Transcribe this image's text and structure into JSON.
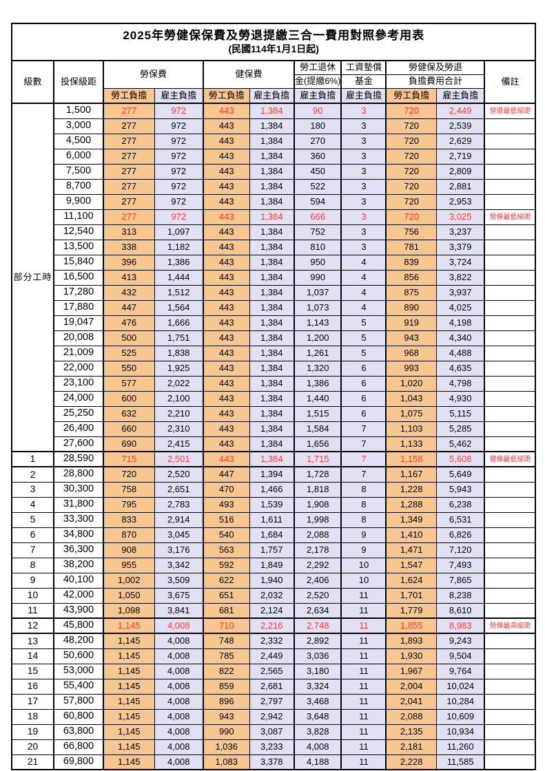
{
  "title": "2025年勞健保保費及勞退提繳三合一費用對照參考用表",
  "subtitle": "(民國114年1月1日起)",
  "header": {
    "level": "級數",
    "salary": "投保級距",
    "labor": "勞保費",
    "health": "健保費",
    "pension_line1": "勞工退休",
    "pension_line2": "金(提繳6%)",
    "wage_fund_line1": "工資墊償",
    "wage_fund_line2": "基金",
    "total_line1": "勞健保及勞退",
    "total_line2": "負擔費用合計",
    "employee": "勞工負擔",
    "employer": "雇主負擔",
    "remark": "備註"
  },
  "part_time_label": "部分工時",
  "colors": {
    "employee_bg": "#F8C68F",
    "employer_bg": "#E2E1F3",
    "highlight_text": "#FB4040"
  },
  "rows": [
    {
      "level": "",
      "salary": "1,500",
      "labor_emp": "277",
      "labor_er": "972",
      "health_emp": "443",
      "health_er": "1,384",
      "pension": "90",
      "fund": "3",
      "total_emp": "720",
      "total_er": "2,449",
      "note": "勞退最低級距",
      "red": true
    },
    {
      "level": "",
      "salary": "3,000",
      "labor_emp": "277",
      "labor_er": "972",
      "health_emp": "443",
      "health_er": "1,384",
      "pension": "180",
      "fund": "3",
      "total_emp": "720",
      "total_er": "2,539",
      "note": "",
      "red": false
    },
    {
      "level": "",
      "salary": "4,500",
      "labor_emp": "277",
      "labor_er": "972",
      "health_emp": "443",
      "health_er": "1,384",
      "pension": "270",
      "fund": "3",
      "total_emp": "720",
      "total_er": "2,629",
      "note": "",
      "red": false
    },
    {
      "level": "",
      "salary": "6,000",
      "labor_emp": "277",
      "labor_er": "972",
      "health_emp": "443",
      "health_er": "1,384",
      "pension": "360",
      "fund": "3",
      "total_emp": "720",
      "total_er": "2,719",
      "note": "",
      "red": false
    },
    {
      "level": "",
      "salary": "7,500",
      "labor_emp": "277",
      "labor_er": "972",
      "health_emp": "443",
      "health_er": "1,384",
      "pension": "450",
      "fund": "3",
      "total_emp": "720",
      "total_er": "2,809",
      "note": "",
      "red": false
    },
    {
      "level": "",
      "salary": "8,700",
      "labor_emp": "277",
      "labor_er": "972",
      "health_emp": "443",
      "health_er": "1,384",
      "pension": "522",
      "fund": "3",
      "total_emp": "720",
      "total_er": "2,881",
      "note": "",
      "red": false
    },
    {
      "level": "",
      "salary": "9,900",
      "labor_emp": "277",
      "labor_er": "972",
      "health_emp": "443",
      "health_er": "1,384",
      "pension": "594",
      "fund": "3",
      "total_emp": "720",
      "total_er": "2,953",
      "note": "",
      "red": false
    },
    {
      "level": "",
      "salary": "11,100",
      "labor_emp": "277",
      "labor_er": "972",
      "health_emp": "443",
      "health_er": "1,384",
      "pension": "666",
      "fund": "3",
      "total_emp": "720",
      "total_er": "3,025",
      "note": "勞保最低級距",
      "red": true
    },
    {
      "level": "",
      "salary": "12,540",
      "labor_emp": "313",
      "labor_er": "1,097",
      "health_emp": "443",
      "health_er": "1,384",
      "pension": "752",
      "fund": "3",
      "total_emp": "756",
      "total_er": "3,237",
      "note": "",
      "red": false
    },
    {
      "level": "",
      "salary": "13,500",
      "labor_emp": "338",
      "labor_er": "1,182",
      "health_emp": "443",
      "health_er": "1,384",
      "pension": "810",
      "fund": "3",
      "total_emp": "781",
      "total_er": "3,379",
      "note": "",
      "red": false
    },
    {
      "level": "",
      "salary": "15,840",
      "labor_emp": "396",
      "labor_er": "1,386",
      "health_emp": "443",
      "health_er": "1,384",
      "pension": "950",
      "fund": "4",
      "total_emp": "839",
      "total_er": "3,724",
      "note": "",
      "red": false
    },
    {
      "level": "",
      "salary": "16,500",
      "labor_emp": "413",
      "labor_er": "1,444",
      "health_emp": "443",
      "health_er": "1,384",
      "pension": "990",
      "fund": "4",
      "total_emp": "856",
      "total_er": "3,822",
      "note": "",
      "red": false
    },
    {
      "level": "",
      "salary": "17,280",
      "labor_emp": "432",
      "labor_er": "1,512",
      "health_emp": "443",
      "health_er": "1,384",
      "pension": "1,037",
      "fund": "4",
      "total_emp": "875",
      "total_er": "3,937",
      "note": "",
      "red": false
    },
    {
      "level": "",
      "salary": "17,880",
      "labor_emp": "447",
      "labor_er": "1,564",
      "health_emp": "443",
      "health_er": "1,384",
      "pension": "1,073",
      "fund": "4",
      "total_emp": "890",
      "total_er": "4,025",
      "note": "",
      "red": false
    },
    {
      "level": "",
      "salary": "19,047",
      "labor_emp": "476",
      "labor_er": "1,666",
      "health_emp": "443",
      "health_er": "1,384",
      "pension": "1,143",
      "fund": "5",
      "total_emp": "919",
      "total_er": "4,198",
      "note": "",
      "red": false
    },
    {
      "level": "",
      "salary": "20,008",
      "labor_emp": "500",
      "labor_er": "1,751",
      "health_emp": "443",
      "health_er": "1,384",
      "pension": "1,200",
      "fund": "5",
      "total_emp": "943",
      "total_er": "4,340",
      "note": "",
      "red": false
    },
    {
      "level": "",
      "salary": "21,009",
      "labor_emp": "525",
      "labor_er": "1,838",
      "health_emp": "443",
      "health_er": "1,384",
      "pension": "1,261",
      "fund": "5",
      "total_emp": "968",
      "total_er": "4,488",
      "note": "",
      "red": false
    },
    {
      "level": "",
      "salary": "22,000",
      "labor_emp": "550",
      "labor_er": "1,925",
      "health_emp": "443",
      "health_er": "1,384",
      "pension": "1,320",
      "fund": "6",
      "total_emp": "993",
      "total_er": "4,635",
      "note": "",
      "red": false
    },
    {
      "level": "",
      "salary": "23,100",
      "labor_emp": "577",
      "labor_er": "2,022",
      "health_emp": "443",
      "health_er": "1,384",
      "pension": "1,386",
      "fund": "6",
      "total_emp": "1,020",
      "total_er": "4,798",
      "note": "",
      "red": false
    },
    {
      "level": "",
      "salary": "24,000",
      "labor_emp": "600",
      "labor_er": "2,100",
      "health_emp": "443",
      "health_er": "1,384",
      "pension": "1,440",
      "fund": "6",
      "total_emp": "1,043",
      "total_er": "4,930",
      "note": "",
      "red": false
    },
    {
      "level": "",
      "salary": "25,250",
      "labor_emp": "632",
      "labor_er": "2,210",
      "health_emp": "443",
      "health_er": "1,384",
      "pension": "1,515",
      "fund": "6",
      "total_emp": "1,075",
      "total_er": "5,115",
      "note": "",
      "red": false
    },
    {
      "level": "",
      "salary": "26,400",
      "labor_emp": "660",
      "labor_er": "2,310",
      "health_emp": "443",
      "health_er": "1,384",
      "pension": "1,584",
      "fund": "7",
      "total_emp": "1,103",
      "total_er": "5,285",
      "note": "",
      "red": false
    },
    {
      "level": "",
      "salary": "27,600",
      "labor_emp": "690",
      "labor_er": "2,415",
      "health_emp": "443",
      "health_er": "1,384",
      "pension": "1,656",
      "fund": "7",
      "total_emp": "1,133",
      "total_er": "5,462",
      "note": "",
      "red": false
    },
    {
      "level": "1",
      "salary": "28,590",
      "labor_emp": "715",
      "labor_er": "2,501",
      "health_emp": "443",
      "health_er": "1,384",
      "pension": "1,715",
      "fund": "7",
      "total_emp": "1,158",
      "total_er": "5,608",
      "note": "健保最低級距",
      "red": true
    },
    {
      "level": "2",
      "salary": "28,800",
      "labor_emp": "720",
      "labor_er": "2,520",
      "health_emp": "447",
      "health_er": "1,394",
      "pension": "1,728",
      "fund": "7",
      "total_emp": "1,167",
      "total_er": "5,649",
      "note": "",
      "red": false
    },
    {
      "level": "3",
      "salary": "30,300",
      "labor_emp": "758",
      "labor_er": "2,651",
      "health_emp": "470",
      "health_er": "1,466",
      "pension": "1,818",
      "fund": "8",
      "total_emp": "1,228",
      "total_er": "5,943",
      "note": "",
      "red": false
    },
    {
      "level": "4",
      "salary": "31,800",
      "labor_emp": "795",
      "labor_er": "2,783",
      "health_emp": "493",
      "health_er": "1,539",
      "pension": "1,908",
      "fund": "8",
      "total_emp": "1,288",
      "total_er": "6,238",
      "note": "",
      "red": false
    },
    {
      "level": "5",
      "salary": "33,300",
      "labor_emp": "833",
      "labor_er": "2,914",
      "health_emp": "516",
      "health_er": "1,611",
      "pension": "1,998",
      "fund": "8",
      "total_emp": "1,349",
      "total_er": "6,531",
      "note": "",
      "red": false
    },
    {
      "level": "6",
      "salary": "34,800",
      "labor_emp": "870",
      "labor_er": "3,045",
      "health_emp": "540",
      "health_er": "1,684",
      "pension": "2,088",
      "fund": "9",
      "total_emp": "1,410",
      "total_er": "6,826",
      "note": "",
      "red": false
    },
    {
      "level": "7",
      "salary": "36,300",
      "labor_emp": "908",
      "labor_er": "3,176",
      "health_emp": "563",
      "health_er": "1,757",
      "pension": "2,178",
      "fund": "9",
      "total_emp": "1,471",
      "total_er": "7,120",
      "note": "",
      "red": false
    },
    {
      "level": "8",
      "salary": "38,200",
      "labor_emp": "955",
      "labor_er": "3,342",
      "health_emp": "592",
      "health_er": "1,849",
      "pension": "2,292",
      "fund": "10",
      "total_emp": "1,547",
      "total_er": "7,493",
      "note": "",
      "red": false
    },
    {
      "level": "9",
      "salary": "40,100",
      "labor_emp": "1,002",
      "labor_er": "3,509",
      "health_emp": "622",
      "health_er": "1,940",
      "pension": "2,406",
      "fund": "10",
      "total_emp": "1,624",
      "total_er": "7,865",
      "note": "",
      "red": false
    },
    {
      "level": "10",
      "salary": "42,000",
      "labor_emp": "1,050",
      "labor_er": "3,675",
      "health_emp": "651",
      "health_er": "2,032",
      "pension": "2,520",
      "fund": "11",
      "total_emp": "1,701",
      "total_er": "8,238",
      "note": "",
      "red": false
    },
    {
      "level": "11",
      "salary": "43,900",
      "labor_emp": "1,098",
      "labor_er": "3,841",
      "health_emp": "681",
      "health_er": "2,124",
      "pension": "2,634",
      "fund": "11",
      "total_emp": "1,779",
      "total_er": "8,610",
      "note": "",
      "red": false
    },
    {
      "level": "12",
      "salary": "45,800",
      "labor_emp": "1,145",
      "labor_er": "4,008",
      "health_emp": "710",
      "health_er": "2,216",
      "pension": "2,748",
      "fund": "11",
      "total_emp": "1,855",
      "total_er": "8,983",
      "note": "勞保最高級距",
      "red": true
    },
    {
      "level": "13",
      "salary": "48,200",
      "labor_emp": "1,145",
      "labor_er": "4,008",
      "health_emp": "748",
      "health_er": "2,332",
      "pension": "2,892",
      "fund": "11",
      "total_emp": "1,893",
      "total_er": "9,243",
      "note": "",
      "red": false
    },
    {
      "level": "14",
      "salary": "50,600",
      "labor_emp": "1,145",
      "labor_er": "4,008",
      "health_emp": "785",
      "health_er": "2,449",
      "pension": "3,036",
      "fund": "11",
      "total_emp": "1,930",
      "total_er": "9,504",
      "note": "",
      "red": false
    },
    {
      "level": "15",
      "salary": "53,000",
      "labor_emp": "1,145",
      "labor_er": "4,008",
      "health_emp": "822",
      "health_er": "2,565",
      "pension": "3,180",
      "fund": "11",
      "total_emp": "1,967",
      "total_er": "9,764",
      "note": "",
      "red": false
    },
    {
      "level": "16",
      "salary": "55,400",
      "labor_emp": "1,145",
      "labor_er": "4,008",
      "health_emp": "859",
      "health_er": "2,681",
      "pension": "3,324",
      "fund": "11",
      "total_emp": "2,004",
      "total_er": "10,024",
      "note": "",
      "red": false
    },
    {
      "level": "17",
      "salary": "57,800",
      "labor_emp": "1,145",
      "labor_er": "4,008",
      "health_emp": "896",
      "health_er": "2,797",
      "pension": "3,468",
      "fund": "11",
      "total_emp": "2,041",
      "total_er": "10,284",
      "note": "",
      "red": false
    },
    {
      "level": "18",
      "salary": "60,800",
      "labor_emp": "1,145",
      "labor_er": "4,008",
      "health_emp": "943",
      "health_er": "2,942",
      "pension": "3,648",
      "fund": "11",
      "total_emp": "2,088",
      "total_er": "10,609",
      "note": "",
      "red": false
    },
    {
      "level": "19",
      "salary": "63,800",
      "labor_emp": "1,145",
      "labor_er": "4,008",
      "health_emp": "990",
      "health_er": "3,087",
      "pension": "3,828",
      "fund": "11",
      "total_emp": "2,135",
      "total_er": "10,934",
      "note": "",
      "red": false
    },
    {
      "level": "20",
      "salary": "66,800",
      "labor_emp": "1,145",
      "labor_er": "4,008",
      "health_emp": "1,036",
      "health_er": "3,233",
      "pension": "4,008",
      "fund": "11",
      "total_emp": "2,181",
      "total_er": "11,260",
      "note": "",
      "red": false
    },
    {
      "level": "21",
      "salary": "69,800",
      "labor_emp": "1,145",
      "labor_er": "4,008",
      "health_emp": "1,083",
      "health_er": "3,378",
      "pension": "4,188",
      "fund": "11",
      "total_emp": "2,228",
      "total_er": "11,585",
      "note": "",
      "red": false
    }
  ]
}
